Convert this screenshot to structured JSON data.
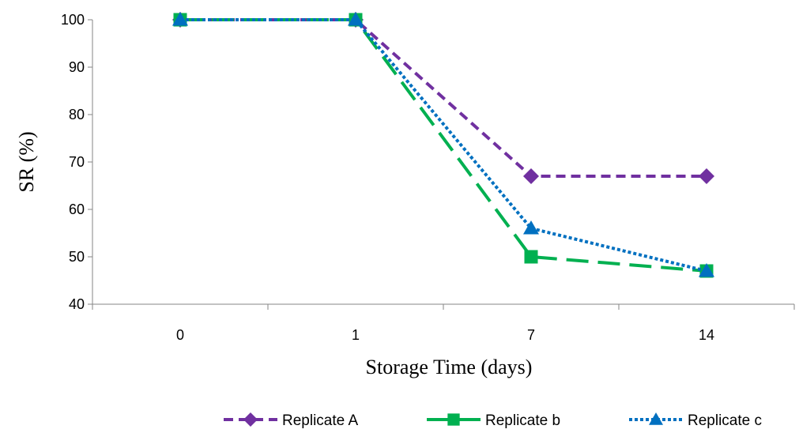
{
  "chart_data": {
    "type": "line",
    "title": "",
    "xlabel": "Storage Time (days)",
    "ylabel": "SR (%)",
    "categories": [
      "0",
      "1",
      "7",
      "14"
    ],
    "ylim": [
      40,
      100
    ],
    "yticks": [
      40,
      50,
      60,
      70,
      80,
      90,
      100
    ],
    "grid": false,
    "legend_position": "bottom",
    "series": [
      {
        "name": "Replicate A",
        "values": [
          100,
          100,
          67,
          67
        ],
        "color": "#7030a0",
        "marker": "diamond",
        "dash": "short-dash"
      },
      {
        "name": "Replicate b",
        "values": [
          100,
          100,
          50,
          47
        ],
        "color": "#00b050",
        "marker": "square",
        "dash": "long-dash"
      },
      {
        "name": "Replicate c",
        "values": [
          100,
          100,
          56,
          47
        ],
        "color": "#0070c0",
        "marker": "triangle",
        "dash": "dotted"
      }
    ]
  }
}
